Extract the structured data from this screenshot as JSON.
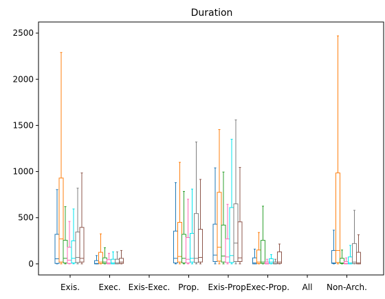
{
  "chart_data": {
    "type": "boxplot",
    "title": "Duration",
    "xlabel": "",
    "ylabel": "",
    "ylim": [
      -120,
      2620
    ],
    "yticks": [
      0,
      500,
      1000,
      1500,
      2000,
      2500
    ],
    "grid": false,
    "legend": "none",
    "categories": [
      "Exis.",
      "Exec.",
      "Exis-Exec.",
      "Prop.",
      "Exis-Prop.",
      "Exec-Prop.",
      "All",
      "Non-Arch."
    ],
    "series_colors": [
      "#1f77b4",
      "#ff7f0e",
      "#2ca02c",
      "#ff69b4",
      "#00e5ee",
      "#7f7f7f",
      "#8c564b"
    ],
    "groups": [
      {
        "category": "Exis.",
        "boxes": [
          {
            "min": 0,
            "q1": 5,
            "median": 55,
            "q3": 320,
            "max": 805
          },
          {
            "min": 0,
            "q1": 20,
            "median": 270,
            "q3": 930,
            "max": 2290
          },
          {
            "min": 0,
            "q1": 10,
            "median": 60,
            "q3": 255,
            "max": 620
          },
          {
            "min": 0,
            "q1": 5,
            "median": 40,
            "q3": 180,
            "max": 460
          },
          {
            "min": 0,
            "q1": 10,
            "median": 60,
            "q3": 250,
            "max": 595
          },
          {
            "min": 0,
            "q1": 15,
            "median": 70,
            "q3": 345,
            "max": 820
          },
          {
            "min": 0,
            "q1": 20,
            "median": 60,
            "q3": 395,
            "max": 985
          }
        ]
      },
      {
        "category": "Exec.",
        "boxes": [
          {
            "min": 0,
            "q1": 0,
            "median": 5,
            "q3": 35,
            "max": 90
          },
          {
            "min": 0,
            "q1": 5,
            "median": 20,
            "q3": 125,
            "max": 325
          },
          {
            "min": 0,
            "q1": 5,
            "median": 20,
            "q3": 65,
            "max": 175
          },
          {
            "min": 0,
            "q1": 0,
            "median": 10,
            "q3": 45,
            "max": 115
          },
          {
            "min": 0,
            "q1": 0,
            "median": 10,
            "q3": 50,
            "max": 130
          },
          {
            "min": 0,
            "q1": 0,
            "median": 10,
            "q3": 50,
            "max": 130
          },
          {
            "min": 0,
            "q1": 5,
            "median": 20,
            "q3": 60,
            "max": 145
          }
        ]
      },
      {
        "category": "Exis-Exec.",
        "boxes": []
      },
      {
        "category": "Prop.",
        "boxes": [
          {
            "min": 0,
            "q1": 10,
            "median": 60,
            "q3": 355,
            "max": 880
          },
          {
            "min": 0,
            "q1": 20,
            "median": 80,
            "q3": 450,
            "max": 1100
          },
          {
            "min": 0,
            "q1": 10,
            "median": 60,
            "q3": 320,
            "max": 785
          },
          {
            "min": 0,
            "q1": 10,
            "median": 50,
            "q3": 285,
            "max": 700
          },
          {
            "min": 0,
            "q1": 20,
            "median": 60,
            "q3": 330,
            "max": 810
          },
          {
            "min": 0,
            "q1": 15,
            "median": 60,
            "q3": 545,
            "max": 1320
          },
          {
            "min": 0,
            "q1": 20,
            "median": 70,
            "q3": 375,
            "max": 915
          }
        ]
      },
      {
        "category": "Exis-Prop.",
        "boxes": [
          {
            "min": 0,
            "q1": 25,
            "median": 95,
            "q3": 430,
            "max": 1040
          },
          {
            "min": 0,
            "q1": 30,
            "median": 180,
            "q3": 775,
            "max": 1455
          },
          {
            "min": 0,
            "q1": 20,
            "median": 85,
            "q3": 420,
            "max": 995
          },
          {
            "min": 0,
            "q1": 15,
            "median": 75,
            "q3": 270,
            "max": 645
          },
          {
            "min": 0,
            "q1": 15,
            "median": 90,
            "q3": 610,
            "max": 1350
          },
          {
            "min": 0,
            "q1": 25,
            "median": 225,
            "q3": 650,
            "max": 1560
          },
          {
            "min": 0,
            "q1": 25,
            "median": 65,
            "q3": 455,
            "max": 1045
          }
        ]
      },
      {
        "category": "Exec-Prop.",
        "boxes": [
          {
            "min": 0,
            "q1": 0,
            "median": 10,
            "q3": 65,
            "max": 160
          },
          {
            "min": 0,
            "q1": 5,
            "median": 20,
            "q3": 150,
            "max": 340
          },
          {
            "min": 0,
            "q1": 5,
            "median": 20,
            "q3": 255,
            "max": 625
          },
          {
            "min": 0,
            "q1": 0,
            "median": 5,
            "q3": 20,
            "max": 50
          },
          {
            "min": 0,
            "q1": 5,
            "median": 20,
            "q3": 55,
            "max": 100
          },
          {
            "min": 0,
            "q1": 0,
            "median": 5,
            "q3": 20,
            "max": 50
          },
          {
            "min": 0,
            "q1": 5,
            "median": 20,
            "q3": 130,
            "max": 215
          }
        ]
      },
      {
        "category": "All",
        "boxes": []
      },
      {
        "category": "Non-Arch.",
        "boxes": [
          {
            "min": 0,
            "q1": 5,
            "median": 10,
            "q3": 145,
            "max": 365
          },
          {
            "min": 0,
            "q1": 15,
            "median": 145,
            "q3": 985,
            "max": 2470
          },
          {
            "min": 0,
            "q1": 5,
            "median": 10,
            "q3": 60,
            "max": 150
          },
          {
            "min": 0,
            "q1": 0,
            "median": 5,
            "q3": 25,
            "max": 65
          },
          {
            "min": 0,
            "q1": 0,
            "median": 10,
            "q3": 75,
            "max": 200
          },
          {
            "min": 0,
            "q1": 5,
            "median": 20,
            "q3": 220,
            "max": 580
          },
          {
            "min": 0,
            "q1": 0,
            "median": 10,
            "q3": 125,
            "max": 315
          }
        ]
      }
    ]
  }
}
